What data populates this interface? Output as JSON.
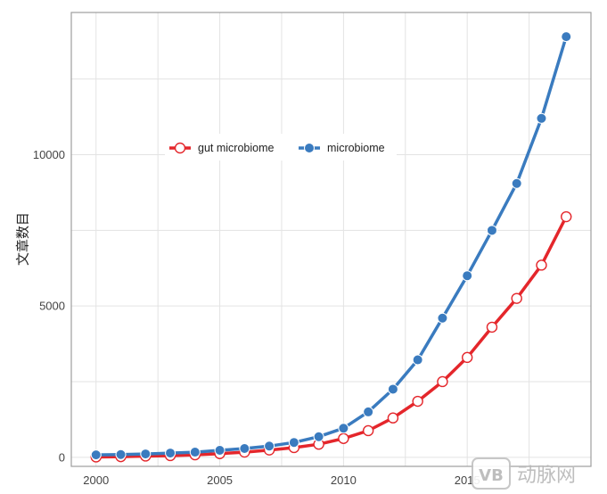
{
  "chart_data": {
    "type": "line",
    "title": "",
    "xlabel": "",
    "ylabel": "文章数目",
    "xlim": [
      1999,
      2020
    ],
    "ylim": [
      -300,
      14700
    ],
    "x_ticks": [
      2000,
      2005,
      2010,
      2015
    ],
    "y_ticks": [
      0,
      5000,
      10000
    ],
    "grid": true,
    "legend_position": "upper-left",
    "x": [
      2000,
      2001,
      2002,
      2003,
      2004,
      2005,
      2006,
      2007,
      2008,
      2009,
      2010,
      2011,
      2012,
      2013,
      2014,
      2015,
      2016,
      2017,
      2018,
      2019
    ],
    "series": [
      {
        "name": "gut microbiome",
        "color": "#e4262b",
        "marker": "open-circle",
        "values": [
          10,
          20,
          40,
          55,
          80,
          120,
          170,
          240,
          320,
          430,
          620,
          880,
          1300,
          1850,
          2500,
          3300,
          4300,
          5250,
          6350,
          7950
        ]
      },
      {
        "name": "microbiome",
        "color": "#3a7bbf",
        "marker": "filled-circle",
        "values": [
          80,
          90,
          110,
          140,
          170,
          230,
          290,
          370,
          490,
          680,
          960,
          1500,
          2250,
          3220,
          4600,
          6000,
          7500,
          9050,
          11200,
          13900
        ]
      }
    ]
  },
  "watermark": {
    "badge": "VB",
    "text": "动脉网"
  }
}
